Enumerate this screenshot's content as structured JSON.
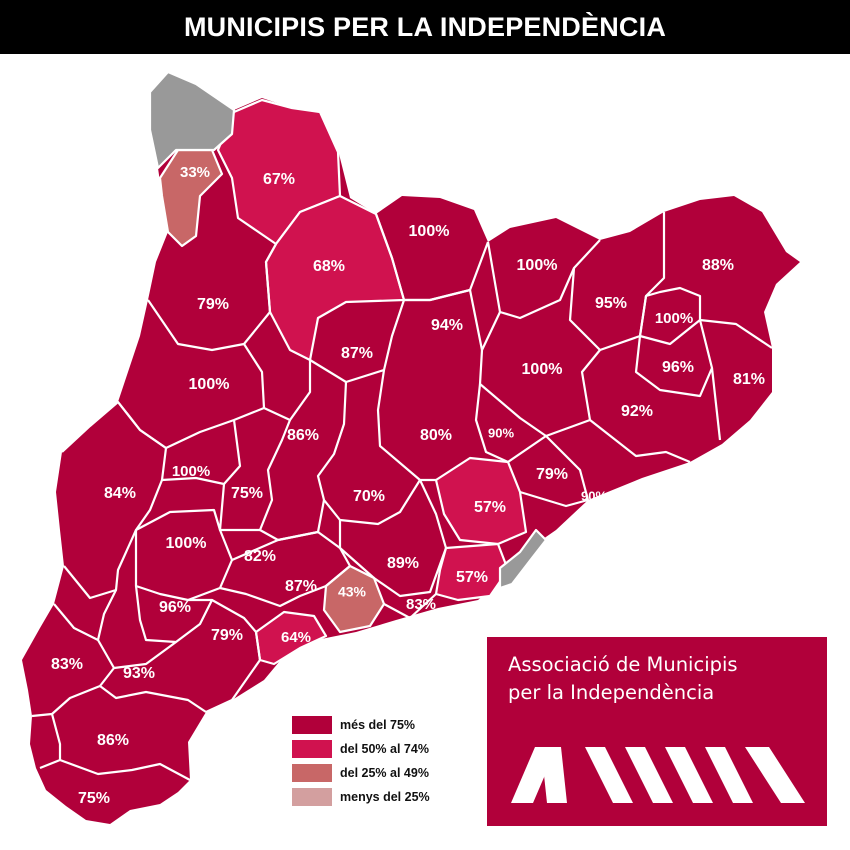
{
  "title": "MUNICIPIS PER LA INDEPENDÈNCIA",
  "colors": {
    "over_75": "#b1003a",
    "from_50_to_74": "#d0124f",
    "from_25_to_49": "#c86767",
    "under_25": "#d39f9f",
    "no_data": "#999999",
    "logo_bg": "#b1003a"
  },
  "regions": [
    {
      "label": "33%"
    },
    {
      "label": "67%"
    },
    {
      "label": "100%"
    },
    {
      "label": "68%"
    },
    {
      "label": "79%"
    },
    {
      "label": "100%"
    },
    {
      "label": "88%"
    },
    {
      "label": "95%"
    },
    {
      "label": "100%"
    },
    {
      "label": "94%"
    },
    {
      "label": "87%"
    },
    {
      "label": "96%"
    },
    {
      "label": "81%"
    },
    {
      "label": "100%"
    },
    {
      "label": "100%"
    },
    {
      "label": "92%"
    },
    {
      "label": "86%"
    },
    {
      "label": "80%"
    },
    {
      "label": "90%"
    },
    {
      "label": "100%"
    },
    {
      "label": "84%"
    },
    {
      "label": "75%"
    },
    {
      "label": "70%"
    },
    {
      "label": "79%"
    },
    {
      "label": "57%"
    },
    {
      "label": "90%"
    },
    {
      "label": "100%"
    },
    {
      "label": "82%"
    },
    {
      "label": "89%"
    },
    {
      "label": "87%"
    },
    {
      "label": "57%"
    },
    {
      "label": "96%"
    },
    {
      "label": "43%"
    },
    {
      "label": "83%"
    },
    {
      "label": "79%"
    },
    {
      "label": "64%"
    },
    {
      "label": "83%"
    },
    {
      "label": "93%"
    },
    {
      "label": "86%"
    },
    {
      "label": "75%"
    }
  ],
  "legend": [
    {
      "label": "més del 75%"
    },
    {
      "label": "del 50% al 74%"
    },
    {
      "label": "del 25% al 49%"
    },
    {
      "label": "menys del 25%"
    }
  ],
  "logo": {
    "line1": "Associació de Municipis",
    "line2": "per la Independència",
    "mark": "AMI"
  }
}
